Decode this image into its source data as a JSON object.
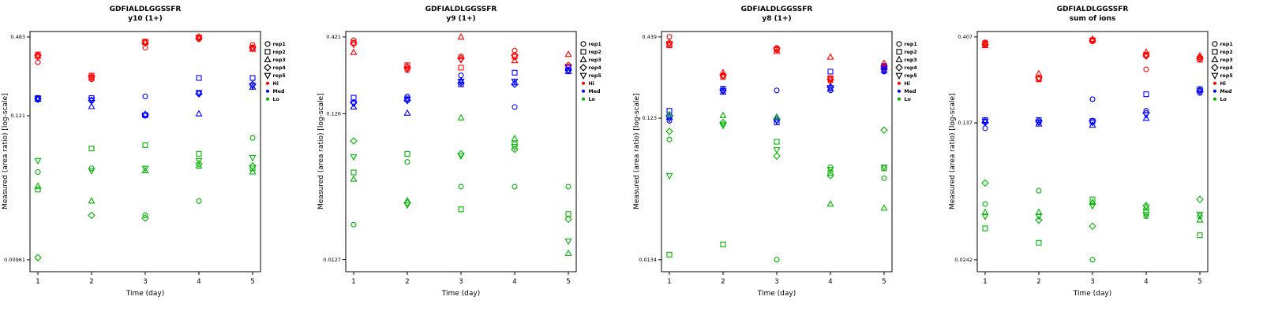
{
  "page": {
    "background": "#ffffff"
  },
  "colors": {
    "Hi": "#ff0000",
    "Med": "#0000ff",
    "Lo": "#00b400"
  },
  "markers": {
    "rep1": "circle",
    "rep2": "square",
    "rep3": "triangle-up",
    "rep4": "diamond",
    "rep5": "triangle-down"
  },
  "legend": {
    "reps": [
      "rep1",
      "rep2",
      "rep3",
      "rep4",
      "rep5"
    ],
    "groups": [
      "Hi",
      "Med",
      "Lo"
    ]
  },
  "chart_data": [
    {
      "type": "scatter",
      "title": "GDFIALDLGGSSFR",
      "subtitle": "y10 (1+)",
      "xlabel": "Time (day)",
      "ylabel": "Measured (area ratio) [log-scale]",
      "yscale": "log",
      "x": [
        1,
        2,
        3,
        4,
        5
      ],
      "xticks": [
        "1",
        "2",
        "3",
        "4",
        "5"
      ],
      "yticks": [
        {
          "value": 0.483,
          "label": "0.483"
        },
        {
          "value": 0.121,
          "label": "0.121"
        },
        {
          "value": 0.00961,
          "label": "0.00961"
        }
      ],
      "ylim": [
        0.0078,
        0.532
      ],
      "series": [
        {
          "group": "Hi",
          "rep": "rep1",
          "values": [
            0.31,
            0.23,
            0.4,
            0.465,
            0.42
          ]
        },
        {
          "group": "Hi",
          "rep": "rep2",
          "values": [
            0.355,
            0.245,
            0.445,
            0.48,
            0.4
          ]
        },
        {
          "group": "Hi",
          "rep": "rep3",
          "values": [
            0.345,
            0.235,
            0.44,
            0.483,
            0.39
          ]
        },
        {
          "group": "Hi",
          "rep": "rep4",
          "values": [
            0.35,
            0.24,
            0.435,
            0.475,
            0.4
          ]
        },
        {
          "group": "Hi",
          "rep": "rep5",
          "values": [
            0.34,
            0.238,
            0.44,
            0.478,
            0.395
          ]
        },
        {
          "group": "Med",
          "rep": "rep1",
          "values": [
            0.16,
            0.158,
            0.17,
            0.18,
            0.21
          ]
        },
        {
          "group": "Med",
          "rep": "rep2",
          "values": [
            0.165,
            0.165,
            0.122,
            0.235,
            0.235
          ]
        },
        {
          "group": "Med",
          "rep": "rep3",
          "values": [
            0.162,
            0.142,
            0.124,
            0.125,
            0.2
          ]
        },
        {
          "group": "Med",
          "rep": "rep4",
          "values": [
            0.163,
            0.158,
            0.123,
            0.178,
            0.21
          ]
        },
        {
          "group": "Med",
          "rep": "rep5",
          "values": [
            0.164,
            0.16,
            0.122,
            0.182,
            0.205
          ]
        },
        {
          "group": "Lo",
          "rep": "rep1",
          "values": [
            0.045,
            0.048,
            0.021,
            0.027,
            0.082
          ]
        },
        {
          "group": "Lo",
          "rep": "rep2",
          "values": [
            0.033,
            0.068,
            0.072,
            0.062,
            0.048
          ]
        },
        {
          "group": "Lo",
          "rep": "rep3",
          "values": [
            0.035,
            0.027,
            0.046,
            0.05,
            0.045
          ]
        },
        {
          "group": "Lo",
          "rep": "rep4",
          "values": [
            0.01,
            0.021,
            0.02,
            0.052,
            0.05
          ]
        },
        {
          "group": "Lo",
          "rep": "rep5",
          "values": [
            0.055,
            0.046,
            0.048,
            0.055,
            0.058
          ]
        }
      ]
    },
    {
      "type": "scatter",
      "title": "GDFIALDLGGSSFR",
      "subtitle": "y9 (1+)",
      "xlabel": "Time (day)",
      "ylabel": "Measured (area ratio) [log-scale]",
      "yscale": "log",
      "x": [
        1,
        2,
        3,
        4,
        5
      ],
      "xticks": [
        "1",
        "2",
        "3",
        "4",
        "5"
      ],
      "yticks": [
        {
          "value": 0.421,
          "label": "0.421"
        },
        {
          "value": 0.126,
          "label": "0.126"
        },
        {
          "value": 0.0127,
          "label": "0.0127"
        }
      ],
      "ylim": [
        0.0105,
        0.459
      ],
      "series": [
        {
          "group": "Hi",
          "rep": "rep1",
          "values": [
            0.4,
            0.25,
            0.31,
            0.34,
            0.25
          ]
        },
        {
          "group": "Hi",
          "rep": "rep2",
          "values": [
            0.385,
            0.27,
            0.26,
            0.31,
            0.26
          ]
        },
        {
          "group": "Hi",
          "rep": "rep3",
          "values": [
            0.33,
            0.265,
            0.42,
            0.29,
            0.32
          ]
        },
        {
          "group": "Hi",
          "rep": "rep4",
          "values": [
            0.38,
            0.26,
            0.3,
            0.315,
            0.27
          ]
        },
        {
          "group": "Hi",
          "rep": "rep5",
          "values": [
            0.375,
            0.255,
            0.295,
            0.31,
            0.265
          ]
        },
        {
          "group": "Med",
          "rep": "rep1",
          "values": [
            0.15,
            0.165,
            0.23,
            0.14,
            0.25
          ]
        },
        {
          "group": "Med",
          "rep": "rep2",
          "values": [
            0.162,
            0.16,
            0.2,
            0.24,
            0.26
          ]
        },
        {
          "group": "Med",
          "rep": "rep3",
          "values": [
            0.14,
            0.127,
            0.21,
            0.205,
            0.245
          ]
        },
        {
          "group": "Med",
          "rep": "rep4",
          "values": [
            0.15,
            0.155,
            0.205,
            0.2,
            0.25
          ]
        },
        {
          "group": "Med",
          "rep": "rep5",
          "values": [
            0.148,
            0.158,
            0.21,
            0.21,
            0.248
          ]
        },
        {
          "group": "Lo",
          "rep": "rep1",
          "values": [
            0.022,
            0.059,
            0.04,
            0.04,
            0.04
          ]
        },
        {
          "group": "Lo",
          "rep": "rep2",
          "values": [
            0.05,
            0.067,
            0.028,
            0.078,
            0.026
          ]
        },
        {
          "group": "Lo",
          "rep": "rep3",
          "values": [
            0.045,
            0.032,
            0.118,
            0.085,
            0.014
          ]
        },
        {
          "group": "Lo",
          "rep": "rep4",
          "values": [
            0.082,
            0.031,
            0.067,
            0.072,
            0.024
          ]
        },
        {
          "group": "Lo",
          "rep": "rep5",
          "values": [
            0.064,
            0.03,
            0.065,
            0.075,
            0.017
          ]
        }
      ]
    },
    {
      "type": "scatter",
      "title": "GDFIALDLGGSSFR",
      "subtitle": "y8 (1+)",
      "xlabel": "Time (day)",
      "ylabel": "Measured (area ratio) [log-scale]",
      "yscale": "log",
      "x": [
        1,
        2,
        3,
        4,
        5
      ],
      "xticks": [
        "1",
        "2",
        "3",
        "4",
        "5"
      ],
      "yticks": [
        {
          "value": 0.439,
          "label": "0.439"
        },
        {
          "value": 0.123,
          "label": "0.123"
        },
        {
          "value": 0.0134,
          "label": "0.0134"
        }
      ],
      "ylim": [
        0.0111,
        0.478
      ],
      "series": [
        {
          "group": "Hi",
          "rep": "rep1",
          "values": [
            0.44,
            0.24,
            0.37,
            0.22,
            0.27
          ]
        },
        {
          "group": "Hi",
          "rep": "rep2",
          "values": [
            0.385,
            0.235,
            0.36,
            0.23,
            0.28
          ]
        },
        {
          "group": "Hi",
          "rep": "rep3",
          "values": [
            0.39,
            0.25,
            0.35,
            0.32,
            0.29
          ]
        },
        {
          "group": "Hi",
          "rep": "rep4",
          "values": [
            0.4,
            0.24,
            0.365,
            0.225,
            0.275
          ]
        },
        {
          "group": "Hi",
          "rep": "rep5",
          "values": [
            0.395,
            0.238,
            0.36,
            0.228,
            0.27
          ]
        },
        {
          "group": "Med",
          "rep": "rep1",
          "values": [
            0.118,
            0.19,
            0.19,
            0.19,
            0.255
          ]
        },
        {
          "group": "Med",
          "rep": "rep2",
          "values": [
            0.138,
            0.195,
            0.115,
            0.255,
            0.275
          ]
        },
        {
          "group": "Med",
          "rep": "rep3",
          "values": [
            0.125,
            0.185,
            0.125,
            0.195,
            0.26
          ]
        },
        {
          "group": "Med",
          "rep": "rep4",
          "values": [
            0.128,
            0.19,
            0.12,
            0.2,
            0.265
          ]
        },
        {
          "group": "Med",
          "rep": "rep5",
          "values": [
            0.122,
            0.188,
            0.118,
            0.198,
            0.26
          ]
        },
        {
          "group": "Lo",
          "rep": "rep1",
          "values": [
            0.088,
            0.112,
            0.0134,
            0.057,
            0.048
          ]
        },
        {
          "group": "Lo",
          "rep": "rep2",
          "values": [
            0.0145,
            0.017,
            0.085,
            0.052,
            0.056
          ]
        },
        {
          "group": "Lo",
          "rep": "rep3",
          "values": [
            0.13,
            0.128,
            0.125,
            0.032,
            0.03
          ]
        },
        {
          "group": "Lo",
          "rep": "rep4",
          "values": [
            0.1,
            0.115,
            0.068,
            0.05,
            0.102
          ]
        },
        {
          "group": "Lo",
          "rep": "rep5",
          "values": [
            0.05,
            0.11,
            0.075,
            0.055,
            0.057
          ]
        }
      ]
    },
    {
      "type": "scatter",
      "title": "GDFIALDLGGSSFR",
      "subtitle": "sum of ions",
      "xlabel": "Time (day)",
      "ylabel": "Measured (area ratio) [log-scale]",
      "yscale": "log",
      "x": [
        1,
        2,
        3,
        4,
        5
      ],
      "xticks": [
        "1",
        "2",
        "3",
        "4",
        "5"
      ],
      "yticks": [
        {
          "value": 0.407,
          "label": "0.407"
        },
        {
          "value": 0.137,
          "label": "0.137"
        },
        {
          "value": 0.0242,
          "label": "0.0242"
        }
      ],
      "ylim": [
        0.0208,
        0.436
      ],
      "series": [
        {
          "group": "Hi",
          "rep": "rep1",
          "values": [
            0.38,
            0.24,
            0.385,
            0.27,
            0.315
          ]
        },
        {
          "group": "Hi",
          "rep": "rep2",
          "values": [
            0.375,
            0.238,
            0.39,
            0.325,
            0.305
          ]
        },
        {
          "group": "Hi",
          "rep": "rep3",
          "values": [
            0.365,
            0.255,
            0.395,
            0.335,
            0.32
          ]
        },
        {
          "group": "Hi",
          "rep": "rep4",
          "values": [
            0.37,
            0.242,
            0.388,
            0.32,
            0.31
          ]
        },
        {
          "group": "Hi",
          "rep": "rep5",
          "values": [
            0.372,
            0.24,
            0.39,
            0.322,
            0.308
          ]
        },
        {
          "group": "Med",
          "rep": "rep1",
          "values": [
            0.128,
            0.138,
            0.185,
            0.16,
            0.2
          ]
        },
        {
          "group": "Med",
          "rep": "rep2",
          "values": [
            0.142,
            0.142,
            0.14,
            0.197,
            0.21
          ]
        },
        {
          "group": "Med",
          "rep": "rep3",
          "values": [
            0.14,
            0.135,
            0.133,
            0.145,
            0.208
          ]
        },
        {
          "group": "Med",
          "rep": "rep4",
          "values": [
            0.138,
            0.14,
            0.14,
            0.155,
            0.205
          ]
        },
        {
          "group": "Med",
          "rep": "rep5",
          "values": [
            0.14,
            0.138,
            0.138,
            0.152,
            0.205
          ]
        },
        {
          "group": "Lo",
          "rep": "rep1",
          "values": [
            0.049,
            0.058,
            0.0242,
            0.042,
            0.042
          ]
        },
        {
          "group": "Lo",
          "rep": "rep2",
          "values": [
            0.036,
            0.03,
            0.052,
            0.044,
            0.033
          ]
        },
        {
          "group": "Lo",
          "rep": "rep3",
          "values": [
            0.044,
            0.044,
            0.05,
            0.047,
            0.04
          ]
        },
        {
          "group": "Lo",
          "rep": "rep4",
          "values": [
            0.064,
            0.04,
            0.037,
            0.048,
            0.052
          ]
        },
        {
          "group": "Lo",
          "rep": "rep5",
          "values": [
            0.042,
            0.042,
            0.048,
            0.043,
            0.043
          ]
        }
      ]
    }
  ]
}
